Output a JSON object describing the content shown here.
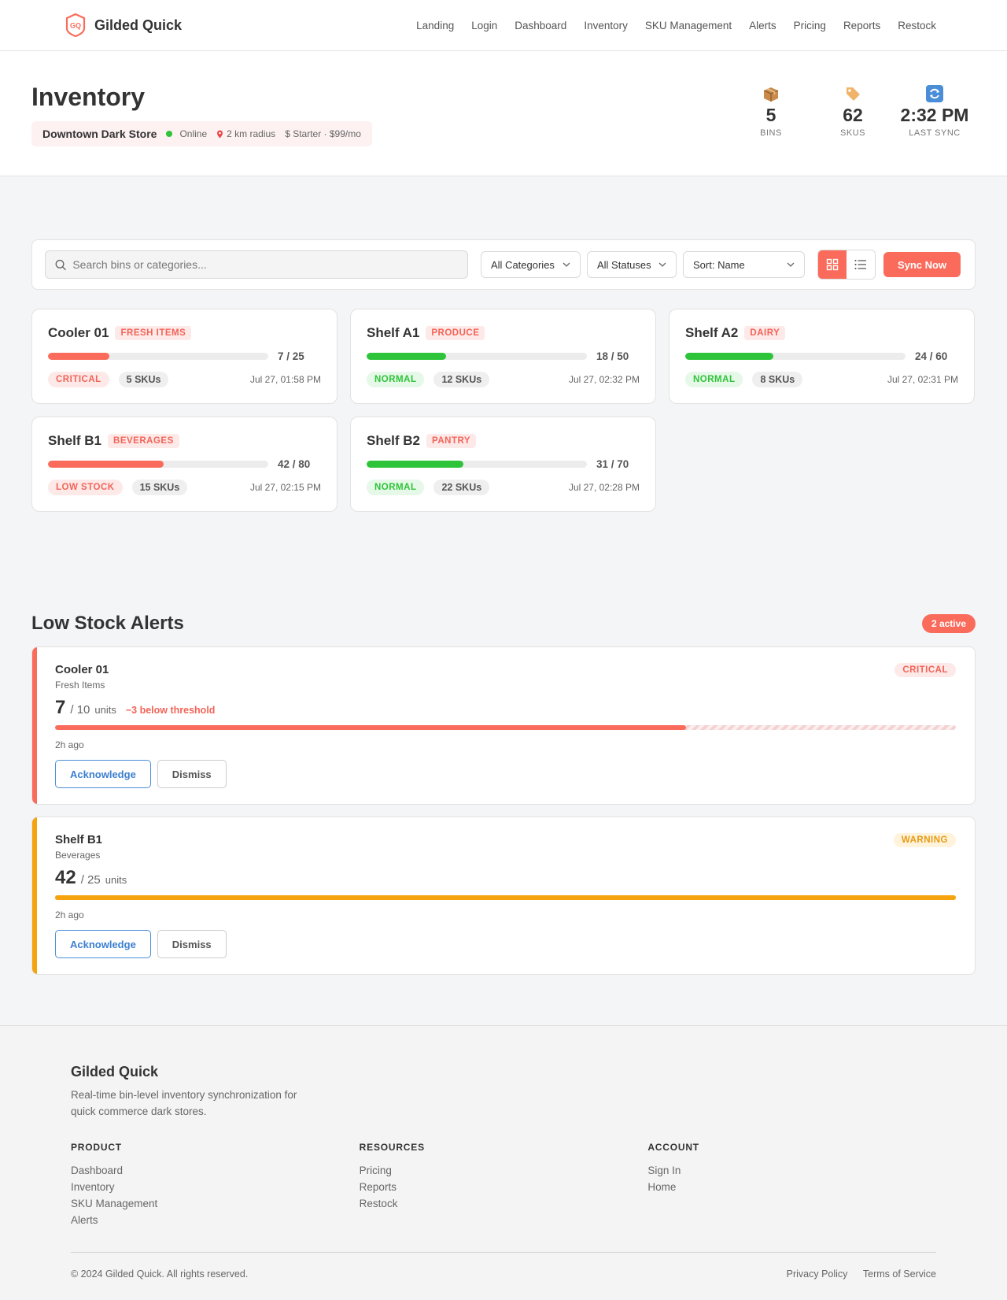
{
  "nav": {
    "brand": "Gilded Quick",
    "logo_text": "GQ",
    "links": [
      "Landing",
      "Login",
      "Dashboard",
      "Inventory",
      "SKU Management",
      "Alerts",
      "Pricing",
      "Reports",
      "Restock"
    ]
  },
  "header": {
    "title": "Inventory",
    "store_name": "Downtown Dark Store",
    "status": "Online",
    "radius": "2 km radius",
    "plan": "$ Starter · $99/mo",
    "stats": [
      {
        "icon": "package-icon",
        "value": "5",
        "label": "BINS"
      },
      {
        "icon": "tag-icon",
        "value": "62",
        "label": "SKUS"
      },
      {
        "icon": "sync-icon",
        "value": "2:32 PM",
        "label": "LAST SYNC"
      }
    ]
  },
  "toolbar": {
    "search_placeholder": "Search bins or categories...",
    "category_filter": "All Categories",
    "status_filter": "All Statuses",
    "sort": "Sort: Name",
    "sync_label": "Sync Now"
  },
  "bins": [
    {
      "name": "Cooler 01",
      "category": "FRESH ITEMS",
      "count": "7 / 25",
      "fill": 0.28,
      "status": "CRITICAL",
      "tone": "red",
      "skus": "5 SKUs",
      "time": "Jul 27, 01:58 PM"
    },
    {
      "name": "Shelf A1",
      "category": "PRODUCE",
      "count": "18 / 50",
      "fill": 0.36,
      "status": "NORMAL",
      "tone": "green",
      "skus": "12 SKUs",
      "time": "Jul 27, 02:32 PM"
    },
    {
      "name": "Shelf A2",
      "category": "DAIRY",
      "count": "24 / 60",
      "fill": 0.4,
      "status": "NORMAL",
      "tone": "green",
      "skus": "8 SKUs",
      "time": "Jul 27, 02:31 PM"
    },
    {
      "name": "Shelf B1",
      "category": "BEVERAGES",
      "count": "42 / 80",
      "fill": 0.525,
      "status": "LOW STOCK",
      "tone": "red",
      "skus": "15 SKUs",
      "time": "Jul 27, 02:15 PM"
    },
    {
      "name": "Shelf B2",
      "category": "PANTRY",
      "count": "31 / 70",
      "fill": 0.44,
      "status": "NORMAL",
      "tone": "green",
      "skus": "22 SKUs",
      "time": "Jul 27, 02:28 PM"
    }
  ],
  "alerts": {
    "title": "Low Stock Alerts",
    "active_badge": "2 active",
    "items": [
      {
        "name": "Cooler 01",
        "category": "Fresh Items",
        "level": "CRITICAL",
        "current": "7",
        "threshold": "/ 10",
        "unit": "units",
        "delta": "−3 below threshold",
        "fill": 0.7,
        "time": "2h ago",
        "ack": "Acknowledge",
        "dismiss": "Dismiss"
      },
      {
        "name": "Shelf B1",
        "category": "Beverages",
        "level": "WARNING",
        "current": "42",
        "threshold": "/ 25",
        "unit": "units",
        "delta": "",
        "fill": 1.0,
        "time": "2h ago",
        "ack": "Acknowledge",
        "dismiss": "Dismiss"
      }
    ]
  },
  "colors": {
    "accent": "#fb6b5b",
    "green": "#2ec43a",
    "warning": "#f5a30f",
    "link_blue": "#3b7fd0"
  },
  "footer": {
    "brand": "Gilded Quick",
    "tagline": "Real-time bin-level inventory synchronization for quick commerce dark stores.",
    "columns": [
      {
        "title": "PRODUCT",
        "links": [
          "Dashboard",
          "Inventory",
          "SKU Management",
          "Alerts"
        ]
      },
      {
        "title": "RESOURCES",
        "links": [
          "Pricing",
          "Reports",
          "Restock"
        ]
      },
      {
        "title": "ACCOUNT",
        "links": [
          "Sign In",
          "Home"
        ]
      }
    ],
    "copyright": "© 2024 Gilded Quick. All rights reserved.",
    "legal": [
      "Privacy Policy",
      "Terms of Service"
    ]
  }
}
